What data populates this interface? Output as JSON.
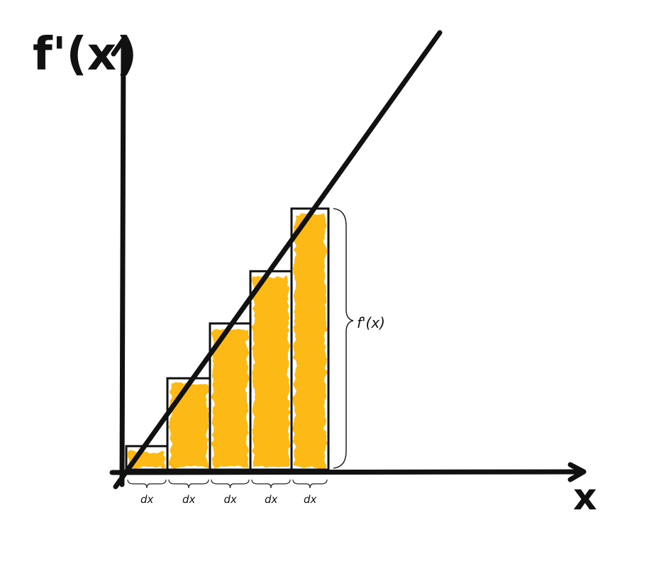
{
  "labels": {
    "y_axis": "f'(x)",
    "x_axis": "x",
    "height_brace": "f'(x)",
    "width_labels": [
      "dx",
      "dx",
      "dx",
      "dx",
      "dx"
    ]
  },
  "colors": {
    "ink": "#111111",
    "fill": "#FDBA12"
  },
  "icons": {
    "x_arrow": "arrow-right-icon",
    "y_arrow": "arrow-up-icon"
  },
  "rectangles": [
    {
      "index": 1,
      "relative_height": 0.09
    },
    {
      "index": 2,
      "relative_height": 0.35
    },
    {
      "index": 3,
      "relative_height": 0.56
    },
    {
      "index": 4,
      "relative_height": 0.76
    },
    {
      "index": 5,
      "relative_height": 1.0
    }
  ]
}
